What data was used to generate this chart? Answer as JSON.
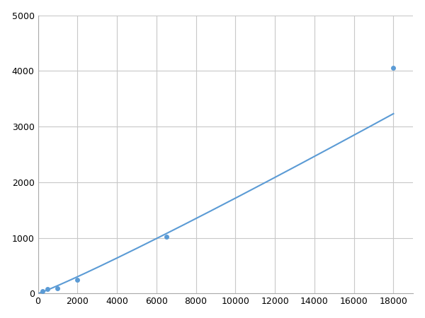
{
  "x_points": [
    250,
    500,
    1000,
    2000,
    6500,
    18000
  ],
  "y_points": [
    40,
    80,
    100,
    250,
    1020,
    4050
  ],
  "line_color": "#5b9bd5",
  "marker_color": "#5b9bd5",
  "marker_size": 5,
  "linewidth": 1.5,
  "xlim": [
    0,
    19000
  ],
  "ylim": [
    0,
    5000
  ],
  "xticks": [
    0,
    2000,
    4000,
    6000,
    8000,
    10000,
    12000,
    14000,
    16000,
    18000
  ],
  "yticks": [
    0,
    1000,
    2000,
    3000,
    4000,
    5000
  ],
  "grid_color": "#c8c8c8",
  "background_color": "#ffffff",
  "figure_bg": "#ffffff"
}
